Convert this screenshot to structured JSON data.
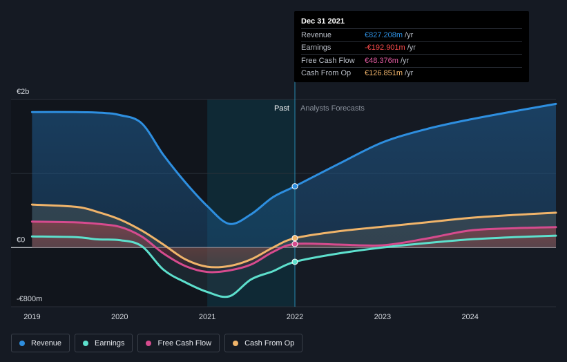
{
  "chart_data": {
    "type": "line",
    "y_tick_labels": [
      "€2b",
      "€0",
      "-€800m"
    ],
    "y_ticks": [
      2000,
      0,
      -800
    ],
    "ylim": [
      -800,
      2000
    ],
    "x_tick_labels": [
      "2019",
      "2020",
      "2021",
      "2022",
      "2023",
      "2024"
    ],
    "x_ticks": [
      2019,
      2020,
      2021,
      2022,
      2023,
      2024
    ],
    "xlim": [
      2018.76,
      2024.98
    ],
    "divider_x": 2022.0,
    "highlight_range": [
      2021.0,
      2022.0
    ],
    "past_label": "Past",
    "forecast_label": "Analysts Forecasts",
    "grid": true,
    "legend_placement": "bottom-left",
    "series": [
      {
        "name": "Revenue",
        "color": "#2e8fe0",
        "points": [
          [
            2019.0,
            1830
          ],
          [
            2019.5,
            1830
          ],
          [
            2019.8,
            1820
          ],
          [
            2020.0,
            1790
          ],
          [
            2020.25,
            1680
          ],
          [
            2020.5,
            1250
          ],
          [
            2020.75,
            880
          ],
          [
            2021.0,
            560
          ],
          [
            2021.25,
            320
          ],
          [
            2021.5,
            450
          ],
          [
            2021.75,
            680
          ],
          [
            2022.0,
            827
          ],
          [
            2022.5,
            1130
          ],
          [
            2023.0,
            1420
          ],
          [
            2023.5,
            1600
          ],
          [
            2024.0,
            1730
          ],
          [
            2024.5,
            1840
          ],
          [
            2024.98,
            1940
          ]
        ]
      },
      {
        "name": "Earnings",
        "color": "#5de0cd",
        "points": [
          [
            2019.0,
            150
          ],
          [
            2019.5,
            140
          ],
          [
            2019.75,
            110
          ],
          [
            2020.0,
            100
          ],
          [
            2020.25,
            20
          ],
          [
            2020.5,
            -300
          ],
          [
            2020.75,
            -470
          ],
          [
            2021.0,
            -600
          ],
          [
            2021.25,
            -660
          ],
          [
            2021.5,
            -430
          ],
          [
            2021.75,
            -320
          ],
          [
            2022.0,
            -193
          ],
          [
            2022.5,
            -80
          ],
          [
            2023.0,
            0
          ],
          [
            2023.5,
            60
          ],
          [
            2024.0,
            110
          ],
          [
            2024.5,
            140
          ],
          [
            2024.98,
            160
          ]
        ]
      },
      {
        "name": "Free Cash Flow",
        "color": "#d64b8e",
        "points": [
          [
            2019.0,
            350
          ],
          [
            2019.5,
            340
          ],
          [
            2019.75,
            320
          ],
          [
            2020.0,
            280
          ],
          [
            2020.25,
            150
          ],
          [
            2020.5,
            -80
          ],
          [
            2020.75,
            -250
          ],
          [
            2021.0,
            -330
          ],
          [
            2021.25,
            -310
          ],
          [
            2021.5,
            -230
          ],
          [
            2021.75,
            -60
          ],
          [
            2022.0,
            48
          ],
          [
            2022.5,
            40
          ],
          [
            2023.0,
            30
          ],
          [
            2023.5,
            120
          ],
          [
            2024.0,
            230
          ],
          [
            2024.5,
            260
          ],
          [
            2024.98,
            275
          ]
        ]
      },
      {
        "name": "Cash From Op",
        "color": "#f0b46a",
        "points": [
          [
            2019.0,
            580
          ],
          [
            2019.5,
            550
          ],
          [
            2019.75,
            480
          ],
          [
            2020.0,
            380
          ],
          [
            2020.25,
            230
          ],
          [
            2020.5,
            40
          ],
          [
            2020.75,
            -160
          ],
          [
            2021.0,
            -260
          ],
          [
            2021.25,
            -250
          ],
          [
            2021.5,
            -160
          ],
          [
            2021.75,
            0
          ],
          [
            2022.0,
            127
          ],
          [
            2022.5,
            220
          ],
          [
            2023.0,
            280
          ],
          [
            2023.5,
            340
          ],
          [
            2024.0,
            400
          ],
          [
            2024.5,
            440
          ],
          [
            2024.98,
            470
          ]
        ]
      }
    ]
  },
  "tooltip": {
    "date": "Dec 31 2021",
    "unit": "/yr",
    "rows": [
      {
        "name": "Revenue",
        "value": "€827.208m",
        "color": "#2e8fe0"
      },
      {
        "name": "Earnings",
        "value": "-€192.901m",
        "color": "#ff4d4d"
      },
      {
        "name": "Free Cash Flow",
        "value": "€48.376m",
        "color": "#e05aa0"
      },
      {
        "name": "Cash From Op",
        "value": "€126.851m",
        "color": "#f0b46a"
      }
    ]
  },
  "legend": [
    {
      "label": "Revenue",
      "color": "#2e8fe0"
    },
    {
      "label": "Earnings",
      "color": "#5de0cd"
    },
    {
      "label": "Free Cash Flow",
      "color": "#d64b8e"
    },
    {
      "label": "Cash From Op",
      "color": "#f0b46a"
    }
  ]
}
